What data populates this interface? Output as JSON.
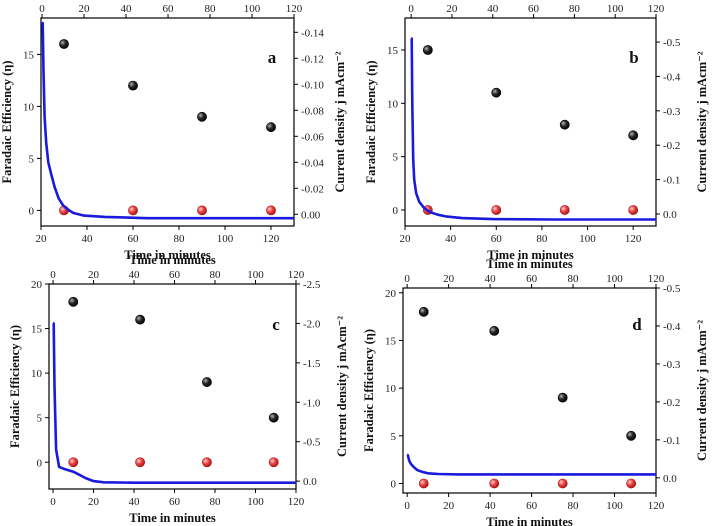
{
  "chart_data": [
    {
      "type": "scatter",
      "panel_label": "a",
      "xlabel": "Time in minutes",
      "ylabel": "Faradaic Efficiency (η)",
      "x2label": "Time in minutes",
      "y2label": "Current density j mAcm⁻²",
      "xlim": [
        20,
        130
      ],
      "xticks": [
        20,
        40,
        60,
        80,
        100,
        120
      ],
      "ylim": [
        -1.5,
        18.5
      ],
      "yticks": [
        0,
        5,
        10,
        15
      ],
      "x2lim": [
        -0.5,
        120
      ],
      "x2ticks": [
        0,
        20,
        40,
        60,
        80,
        100,
        120
      ],
      "y2lim": [
        0.009,
        -0.151
      ],
      "y2ticks": [
        0.0,
        -0.02,
        -0.04,
        -0.06,
        -0.08,
        -0.1,
        -0.12,
        -0.14
      ],
      "y2format": 2,
      "y2reversed": true,
      "series": [
        {
          "color": "#111111",
          "marker": "sphere",
          "x": [
            30,
            60,
            90,
            120
          ],
          "y": [
            16,
            12,
            9,
            8
          ]
        },
        {
          "color": "#e03030",
          "marker": "sphere",
          "x": [
            30,
            60,
            90,
            120
          ],
          "y": [
            0,
            0,
            0,
            0
          ]
        },
        {
          "color": "#1a1adc",
          "marker": "line",
          "axis": "top-right",
          "x": [
            -0.5,
            0,
            0.3,
            0.7,
            1.2,
            2,
            3,
            4.5,
            6,
            8,
            10,
            12,
            15,
            20,
            30,
            50,
            80,
            120
          ],
          "y": [
            -0.147,
            -0.147,
            -0.147,
            -0.11,
            -0.075,
            -0.055,
            -0.04,
            -0.03,
            -0.021,
            -0.012,
            -0.007,
            -0.004,
            -0.001,
            0.001,
            0.002,
            0.003,
            0.003,
            0.003
          ]
        }
      ]
    },
    {
      "type": "scatter",
      "panel_label": "b",
      "xlabel": "Time in minutes",
      "ylabel": "Faradaic Efficiency (η)",
      "x2label": "Time in minutes",
      "y2label": "Current density j mAcm⁻²",
      "xlim": [
        20,
        130
      ],
      "xticks": [
        20,
        40,
        60,
        80,
        100,
        120
      ],
      "ylim": [
        -1.5,
        18
      ],
      "yticks": [
        0,
        5,
        10,
        15
      ],
      "x2lim": [
        -3,
        120
      ],
      "x2ticks": [
        0,
        20,
        40,
        60,
        80,
        100,
        120
      ],
      "y2lim": [
        0.035,
        -0.57
      ],
      "y2ticks": [
        0.0,
        -0.1,
        -0.2,
        -0.3,
        -0.4,
        -0.5
      ],
      "y2format": 1,
      "y2reversed": true,
      "series": [
        {
          "color": "#111111",
          "marker": "sphere",
          "x": [
            30,
            60,
            90,
            120
          ],
          "y": [
            15,
            11,
            8,
            7
          ]
        },
        {
          "color": "#e03030",
          "marker": "sphere",
          "x": [
            30,
            60,
            90,
            120
          ],
          "y": [
            0,
            0,
            0,
            0
          ]
        },
        {
          "color": "#1a1adc",
          "marker": "line",
          "axis": "top-right",
          "x": [
            0,
            0.3,
            0.6,
            1,
            1.5,
            2.5,
            4,
            6,
            8,
            10,
            13,
            17,
            25,
            40,
            70,
            120
          ],
          "y": [
            -0.51,
            -0.51,
            -0.32,
            -0.16,
            -0.1,
            -0.06,
            -0.035,
            -0.02,
            -0.01,
            -0.004,
            0.002,
            0.007,
            0.012,
            0.015,
            0.016,
            0.016
          ]
        }
      ]
    },
    {
      "type": "scatter",
      "panel_label": "c",
      "xlabel": "Time in minutes",
      "ylabel": "Faradaic Efficiency (η)",
      "x2label": "Time in minutes",
      "y2label": "Current density j mAcm⁻²",
      "xlim": [
        -2,
        120
      ],
      "xticks": [
        0,
        20,
        40,
        60,
        80,
        100,
        120
      ],
      "ylim": [
        -3,
        20
      ],
      "yticks": [
        0,
        5,
        10,
        15,
        20
      ],
      "x2lim": [
        -2,
        120
      ],
      "x2ticks": [
        0,
        20,
        40,
        60,
        80,
        100,
        120
      ],
      "y2lim": [
        0.1,
        -2.5
      ],
      "y2ticks": [
        0.0,
        -0.5,
        -1.0,
        -1.5,
        -2.0,
        -2.5
      ],
      "y2format": 1,
      "y2reversed": true,
      "series": [
        {
          "color": "#111111",
          "marker": "sphere",
          "x": [
            10,
            43,
            76,
            109
          ],
          "y": [
            18,
            16,
            9,
            5
          ]
        },
        {
          "color": "#e03030",
          "marker": "sphere",
          "x": [
            10,
            43,
            76,
            109
          ],
          "y": [
            0,
            0,
            0,
            0
          ]
        },
        {
          "color": "#1a1adc",
          "marker": "line",
          "axis": "top-right",
          "x": [
            0,
            0.3,
            0.7,
            1.5,
            3,
            6,
            10,
            13,
            16,
            20,
            25,
            40,
            60,
            90,
            120
          ],
          "y": [
            -2.0,
            -2.0,
            -1.2,
            -0.4,
            -0.18,
            -0.15,
            -0.12,
            -0.08,
            -0.04,
            0.0,
            0.015,
            0.02,
            0.02,
            0.02,
            0.02
          ]
        }
      ]
    },
    {
      "type": "scatter",
      "panel_label": "d",
      "xlabel": "Time in minutes",
      "ylabel": "Faradaic Efficiency (η)",
      "x2label": "Time in minutes",
      "y2label": "Current density j mAcm⁻²",
      "xlim": [
        -2,
        120
      ],
      "xticks": [
        0,
        20,
        40,
        60,
        80,
        100,
        120
      ],
      "ylim": [
        -1,
        20.5
      ],
      "yticks": [
        0,
        5,
        10,
        15,
        20
      ],
      "x2lim": [
        -2,
        120
      ],
      "x2ticks": [
        0,
        20,
        40,
        60,
        80,
        100,
        120
      ],
      "y2lim": [
        0.04,
        -0.5
      ],
      "y2ticks": [
        0.0,
        -0.1,
        -0.2,
        -0.3,
        -0.4,
        -0.5
      ],
      "y2format": 1,
      "y2reversed": true,
      "series": [
        {
          "color": "#111111",
          "marker": "sphere",
          "x": [
            8,
            42,
            75,
            108
          ],
          "y": [
            18,
            16,
            9,
            5
          ]
        },
        {
          "color": "#e03030",
          "marker": "sphere",
          "x": [
            8,
            42,
            75,
            108
          ],
          "y": [
            0,
            0,
            0,
            0
          ]
        },
        {
          "color": "#1a1adc",
          "marker": "line",
          "axis": "top-right",
          "x": [
            0,
            0.3,
            1,
            2,
            3.5,
            5,
            7,
            10,
            15,
            25,
            40,
            60,
            120
          ],
          "y": [
            -0.06,
            -0.06,
            -0.045,
            -0.035,
            -0.027,
            -0.02,
            -0.016,
            -0.012,
            -0.01,
            -0.009,
            -0.009,
            -0.009,
            -0.009
          ]
        }
      ]
    }
  ]
}
